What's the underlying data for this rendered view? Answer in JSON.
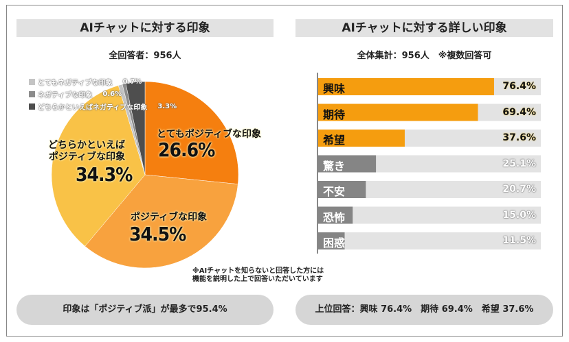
{
  "left": {
    "title": "AIチャットに対する印象",
    "subtitle": "全回答者：956人"
  },
  "right": {
    "title": "AIチャットに対する詳しい印象",
    "subtitle": "全体集計：956人　※複数回答可"
  },
  "note": [
    "※AIチャットを知らないと回答した方には",
    "機能を説明した上で回答いただいています"
  ],
  "summary_left": "印象は「ポジティブ派」が最多で95.4%",
  "summary_right": "上位回答：興味 76.4%　期待 69.4%　希望 37.6%",
  "chart_data": [
    {
      "type": "pie",
      "title": "AIチャットに対する印象",
      "labels": [
        "とてもポジティブな印象",
        "ポジティブな印象",
        "どちらかといえばポジティブな印象",
        "とてもネガティブな印象",
        "ネガティブな印象",
        "どちらかといえばネガティブな印象"
      ],
      "values": [
        26.6,
        34.5,
        34.3,
        0.7,
        0.6,
        3.3
      ],
      "value_labels": [
        "26.6%",
        "34.5%",
        "34.3%",
        "0.7%",
        "0.6%",
        "3.3%"
      ],
      "colors": [
        "#f57f0f",
        "#f8a23e",
        "#f9c247",
        "#c4c4c4",
        "#8c8c8c",
        "#4e4e4e"
      ],
      "inner_labels": {
        "l0": "とてもポジティブな印象",
        "l1": "ポジティブな印象",
        "l2a": "どちらかといえば",
        "l2b": "ポジティブな印象"
      }
    },
    {
      "type": "bar",
      "orientation": "horizontal",
      "title": "AIチャットに対する詳しい印象",
      "categories": [
        "興味",
        "期待",
        "希望",
        "驚き",
        "不安",
        "恐怖",
        "困惑"
      ],
      "values": [
        76.4,
        69.4,
        37.6,
        25.1,
        20.7,
        15.0,
        11.5
      ],
      "value_labels": [
        "76.4%",
        "69.4%",
        "37.6%",
        "25.1%",
        "20.7%",
        "15.0%",
        "11.5%"
      ],
      "colors": {
        "positive": "#f59d0f",
        "negative": "#858585",
        "track": "#e3e3e3"
      },
      "xlim": [
        0,
        100
      ]
    }
  ]
}
